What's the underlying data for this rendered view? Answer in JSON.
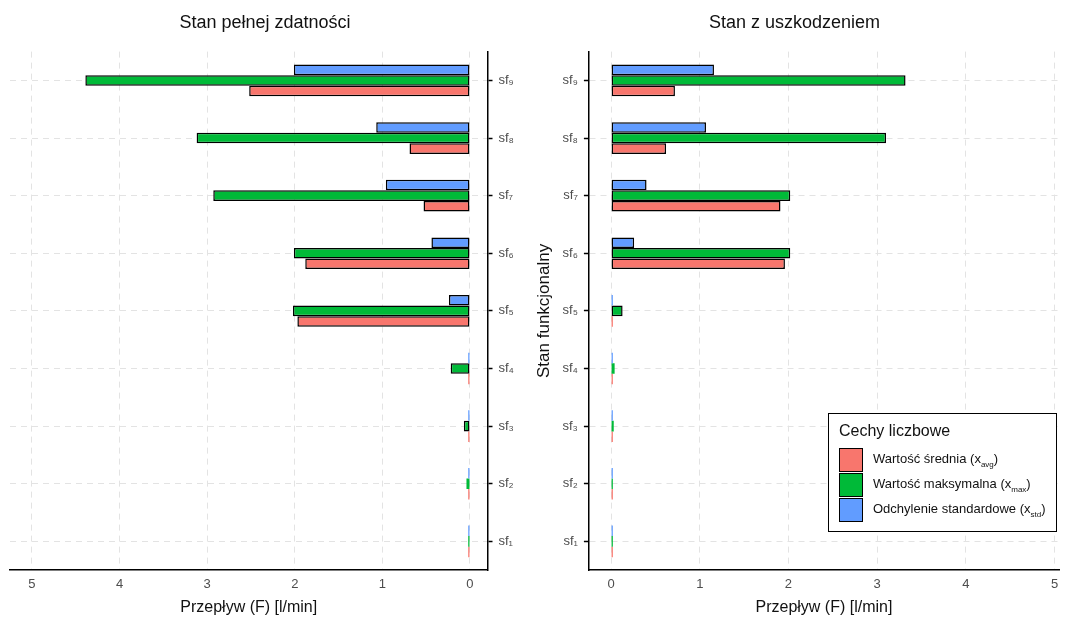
{
  "chart_data": [
    {
      "type": "bar",
      "orientation": "horizontal",
      "title": "Stan pełnej zdatności",
      "xlabel": "Przepływ (F) [l/min]",
      "categories": [
        "sf₉",
        "sf₈",
        "sf₇",
        "sf₆",
        "sf₅",
        "sf₄",
        "sf₃",
        "sf₂",
        "sf₁"
      ],
      "series": [
        {
          "color": "#f8766d",
          "values": [
            2.52,
            0.69,
            0.53,
            1.88,
            1.97,
            0.02,
            0.02,
            0.02,
            0.02
          ]
        },
        {
          "color": "#00ba38",
          "values": [
            4.39,
            3.12,
            2.93,
            2.01,
            2.02,
            0.22,
            0.07,
            0.04,
            0.02
          ]
        },
        {
          "color": "#619cff",
          "values": [
            2.01,
            1.07,
            0.96,
            0.44,
            0.24,
            0.02,
            0.02,
            0.02,
            0.02
          ]
        }
      ],
      "xlim": [
        5.25,
        -0.2
      ],
      "xticks": [
        5,
        4,
        3,
        2,
        1,
        0
      ],
      "grid": true,
      "legend": false
    },
    {
      "type": "bar",
      "orientation": "horizontal",
      "title": "Stan z uszkodzeniem",
      "xlabel": "Przepływ (F) [l/min]",
      "ylabel": "Stan funkcjonalny",
      "legend_title": "Cechy liczbowe",
      "categories": [
        "sf₉",
        "sf₈",
        "sf₇",
        "sf₆",
        "sf₅",
        "sf₄",
        "sf₃",
        "sf₂",
        "sf₁"
      ],
      "series": [
        {
          "name": "Wartość średnia (x$_{avg}$)",
          "color": "#f8766d",
          "values": [
            0.72,
            0.62,
            1.91,
            1.96,
            0.02,
            0.02,
            0.02,
            0.02,
            0.02
          ]
        },
        {
          "name": "Wartość maksymalna (x$_{max}$)",
          "color": "#00ba38",
          "values": [
            3.32,
            3.1,
            2.02,
            2.02,
            0.13,
            0.04,
            0.03,
            0.02,
            0.02
          ]
        },
        {
          "name": "Odchylenie standardowe (x$_{std}$)",
          "color": "#619cff",
          "values": [
            1.16,
            1.07,
            0.4,
            0.26,
            0.02,
            0.02,
            0.02,
            0.02,
            0.02
          ]
        }
      ],
      "xlim": [
        -0.25,
        5.05
      ],
      "xticks": [
        0,
        1,
        2,
        3,
        4,
        5
      ],
      "grid": true,
      "legend": "bottom right"
    }
  ]
}
